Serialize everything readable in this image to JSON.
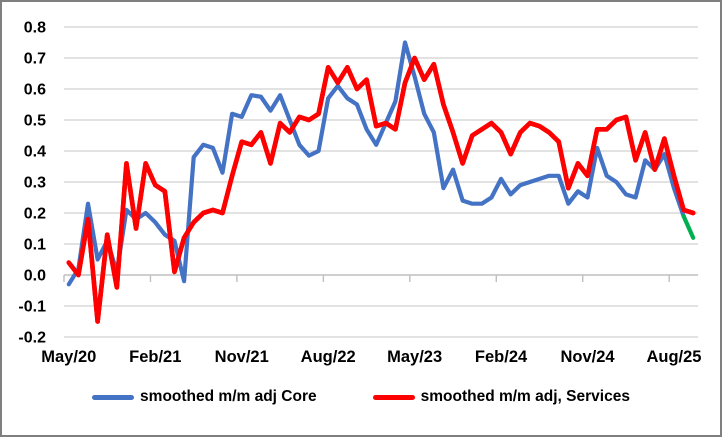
{
  "chart_data": {
    "type": "line",
    "title": "",
    "categories": [
      "May/20",
      "Jun/20",
      "Jul/20",
      "Aug/20",
      "Sep/20",
      "Oct/20",
      "Nov/20",
      "Dec/20",
      "Jan/21",
      "Feb/21",
      "Mar/21",
      "Apr/21",
      "May/21",
      "Jun/21",
      "Jul/21",
      "Aug/21",
      "Sep/21",
      "Oct/21",
      "Nov/21",
      "Dec/21",
      "Jan/22",
      "Feb/22",
      "Mar/22",
      "Apr/22",
      "May/22",
      "Jun/22",
      "Jul/22",
      "Aug/22",
      "Sep/22",
      "Oct/22",
      "Nov/22",
      "Dec/22",
      "Jan/23",
      "Feb/23",
      "Mar/23",
      "Apr/23",
      "May/23",
      "Jun/23",
      "Jul/23",
      "Aug/23",
      "Sep/23",
      "Oct/23",
      "Nov/23",
      "Dec/23",
      "Jan/24",
      "Feb/24",
      "Mar/24",
      "Apr/24",
      "May/24",
      "Jun/24",
      "Jul/24",
      "Aug/24",
      "Sep/24",
      "Oct/24",
      "Nov/24",
      "Dec/24",
      "Jan/25",
      "Feb/25",
      "Mar/25",
      "Apr/25",
      "May/25",
      "Jun/25",
      "Jul/25",
      "Aug/25",
      "Sep/25",
      "Oct/25"
    ],
    "x_tick_labels_shown": [
      {
        "label": "May/20",
        "index": 0
      },
      {
        "label": "Feb/21",
        "index": 9
      },
      {
        "label": "Nov/21",
        "index": 18
      },
      {
        "label": "Aug/22",
        "index": 27
      },
      {
        "label": "May/23",
        "index": 36
      },
      {
        "label": "Feb/24",
        "index": 45
      },
      {
        "label": "Nov/24",
        "index": 54
      },
      {
        "label": "Aug/25",
        "index": 63
      }
    ],
    "ylim": [
      -0.2,
      0.8
    ],
    "y_tick_step": 0.1,
    "y_tick_labels": [
      "0.8",
      "0.7",
      "0.6",
      "0.5",
      "0.4",
      "0.3",
      "0.2",
      "0.1",
      "0.0",
      "-0.1",
      "-0.2"
    ],
    "grid": true,
    "legend_position": "bottom",
    "series": [
      {
        "name": "smoothed m/m adj Core",
        "color": "#4472C4",
        "values": [
          -0.03,
          0.02,
          0.23,
          0.05,
          0.11,
          0.01,
          0.21,
          0.18,
          0.2,
          0.17,
          0.13,
          0.11,
          -0.02,
          0.38,
          0.42,
          0.41,
          0.33,
          0.52,
          0.51,
          0.58,
          0.575,
          0.53,
          0.58,
          0.5,
          0.42,
          0.385,
          0.4,
          0.57,
          0.61,
          0.57,
          0.55,
          0.47,
          0.42,
          0.49,
          0.56,
          0.75,
          0.64,
          0.52,
          0.46,
          0.28,
          0.34,
          0.24,
          0.23,
          0.23,
          0.25,
          0.31,
          0.26,
          0.29,
          0.3,
          0.31,
          0.32,
          0.32,
          0.23,
          0.27,
          0.25,
          0.41,
          0.32,
          0.3,
          0.26,
          0.25,
          0.37,
          0.34,
          0.39,
          0.28,
          0.19,
          null
        ]
      },
      {
        "name": "smoothed m/m adj, Services",
        "color": "#FF0000",
        "values": [
          0.04,
          0.0,
          0.18,
          -0.15,
          0.13,
          -0.04,
          0.36,
          0.15,
          0.36,
          0.29,
          0.27,
          0.01,
          0.12,
          0.17,
          0.2,
          0.21,
          0.2,
          0.32,
          0.43,
          0.42,
          0.46,
          0.36,
          0.49,
          0.46,
          0.51,
          0.5,
          0.52,
          0.67,
          0.62,
          0.67,
          0.6,
          0.63,
          0.48,
          0.49,
          0.47,
          0.62,
          0.7,
          0.63,
          0.68,
          0.55,
          0.46,
          0.36,
          0.45,
          0.47,
          0.49,
          0.46,
          0.39,
          0.46,
          0.49,
          0.48,
          0.46,
          0.43,
          0.28,
          0.36,
          0.32,
          0.47,
          0.47,
          0.5,
          0.51,
          0.37,
          0.46,
          0.34,
          0.44,
          0.32,
          0.21,
          0.2
        ]
      }
    ],
    "forecast_extension": {
      "applies_to": "smoothed m/m adj Core",
      "color": "#00B050",
      "points": [
        {
          "category": "Sep/25",
          "index": 64,
          "value": 0.19
        },
        {
          "category": "Oct/25",
          "index": 65,
          "value": 0.12
        }
      ]
    }
  },
  "legend": {
    "core_label": "smoothed m/m adj Core",
    "services_label": "smoothed m/m adj, Services"
  },
  "colors": {
    "core_line": "#4472C4",
    "services_line": "#FF0000",
    "forecast_line": "#00B050",
    "gridline": "#D9D9D9",
    "axis_line": "#BFBFBF",
    "text": "#000000",
    "frame_border": "#7F7F7F",
    "background": "#FFFFFF"
  }
}
